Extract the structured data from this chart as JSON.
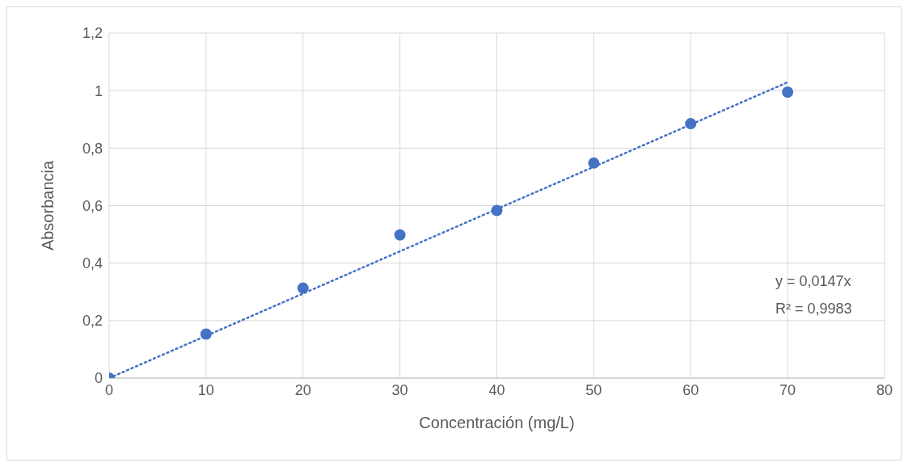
{
  "chart_data": {
    "type": "scatter",
    "xlabel": "Concentración (mg/L)",
    "ylabel": "Absorbancia",
    "xlim": [
      0,
      80
    ],
    "xticks": [
      0,
      10,
      20,
      30,
      40,
      50,
      60,
      70,
      80
    ],
    "ylim": [
      0,
      1.2
    ],
    "yticks": [
      0,
      {
        "value": 0.2,
        "label": "0,2"
      },
      {
        "value": 0.4,
        "label": "0,4"
      },
      {
        "value": 0.6,
        "label": "0,6"
      },
      {
        "value": 0.8,
        "label": "0,8"
      },
      1,
      {
        "value": 1.2,
        "label": "1,2"
      }
    ],
    "grid": true,
    "series": [
      {
        "color": "#4472c4",
        "marker": "circle",
        "x": [
          0,
          10,
          20,
          30,
          40,
          50,
          60,
          70
        ],
        "values": [
          0,
          0.153,
          0.313,
          0.498,
          0.583,
          0.748,
          0.885,
          0.995
        ]
      },
      {
        "type": "line",
        "color": "#4472c4",
        "marker": "none",
        "line_style": "dotted",
        "x": [
          0,
          70
        ],
        "values": [
          0,
          1.029
        ]
      }
    ],
    "annotations": [
      "y = 0,0147x",
      "R² = 0,9983"
    ]
  }
}
